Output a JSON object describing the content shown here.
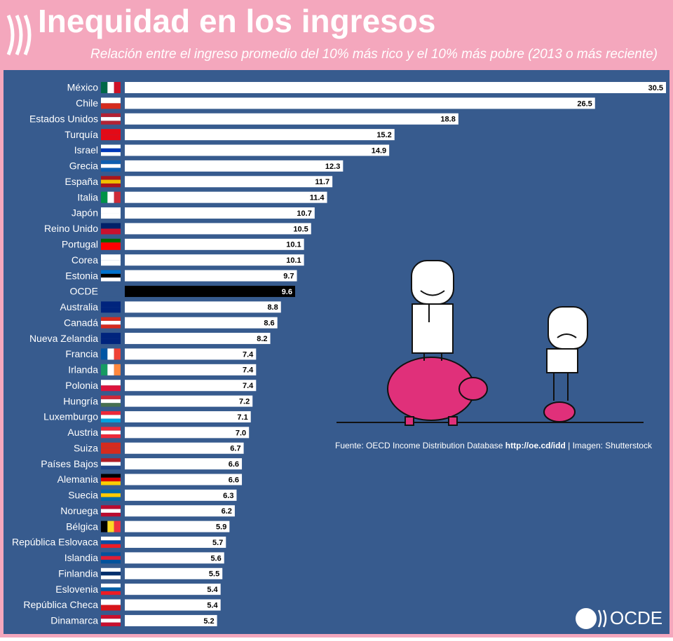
{
  "chart_data": {
    "type": "bar",
    "orientation": "horizontal",
    "title": "Inequidad en los ingresos",
    "subtitle": "Relación entre el ingreso promedio del 10% más rico y el 10% más pobre (2013 o más reciente)",
    "categories": [
      "México",
      "Chile",
      "Estados Unidos",
      "Turquía",
      "Israel",
      "Grecia",
      "España",
      "Italia",
      "Japón",
      "Reino Unido",
      "Portugal",
      "Corea",
      "Estonia",
      "OCDE",
      "Australia",
      "Canadá",
      "Nueva Zelandia",
      "Francia",
      "Irlanda",
      "Polonia",
      "Hungría",
      "Luxemburgo",
      "Austria",
      "Suiza",
      "Países Bajos",
      "Alemania",
      "Suecia",
      "Noruega",
      "Bélgica",
      "República Eslovaca",
      "Islandia",
      "Finlandia",
      "Eslovenia",
      "República Checa",
      "Dinamarca"
    ],
    "values": [
      30.5,
      26.5,
      18.8,
      15.2,
      14.9,
      12.3,
      11.7,
      11.4,
      10.7,
      10.5,
      10.1,
      10.1,
      9.7,
      9.6,
      8.8,
      8.6,
      8.2,
      7.4,
      7.4,
      7.4,
      7.2,
      7.1,
      7,
      6.7,
      6.6,
      6.6,
      6.3,
      6.2,
      5.9,
      5.7,
      5.6,
      5.5,
      5.4,
      5.4,
      5.2
    ],
    "value_labels": [
      "30.5",
      "26.5",
      "18.8",
      "15.2",
      "14.9",
      "12.3",
      "11.7",
      "11.4",
      "10.7",
      "10.5",
      "10.1",
      "10.1",
      "9.7",
      "9.6",
      "8.8",
      "8.6",
      "8.2",
      "7.4",
      "7.4",
      "7.4",
      "7.2",
      "7.1",
      "7.0",
      "6.7",
      "6.6",
      "6.6",
      "6.3",
      "6.2",
      "5.9",
      "5.7",
      "5.6",
      "5.5",
      "5.4",
      "5.4",
      "5.2"
    ],
    "colors": [
      "#ffffff",
      "#ffffff",
      "#ffffff",
      "#ffffff",
      "#ffffff",
      "#ffffff",
      "#ffffff",
      "#ffffff",
      "#ffffff",
      "#ffffff",
      "#ffffff",
      "#ffffff",
      "#ffffff",
      "#000000",
      "#ffffff",
      "#ffffff",
      "#ffffff",
      "#ffffff",
      "#ffffff",
      "#ffffff",
      "#ffffff",
      "#ffffff",
      "#ffffff",
      "#ffffff",
      "#ffffff",
      "#ffffff",
      "#ffffff",
      "#ffffff",
      "#ffffff",
      "#ffffff",
      "#ffffff",
      "#ffffff",
      "#ffffff",
      "#ffffff",
      "#ffffff"
    ],
    "source": {
      "prefix": "Fuente: OECD Income Distribution Database",
      "url": "http://oe.cd/idd",
      "suffix": "| Imagen: Shutterstock"
    },
    "logo": "OCDE"
  }
}
